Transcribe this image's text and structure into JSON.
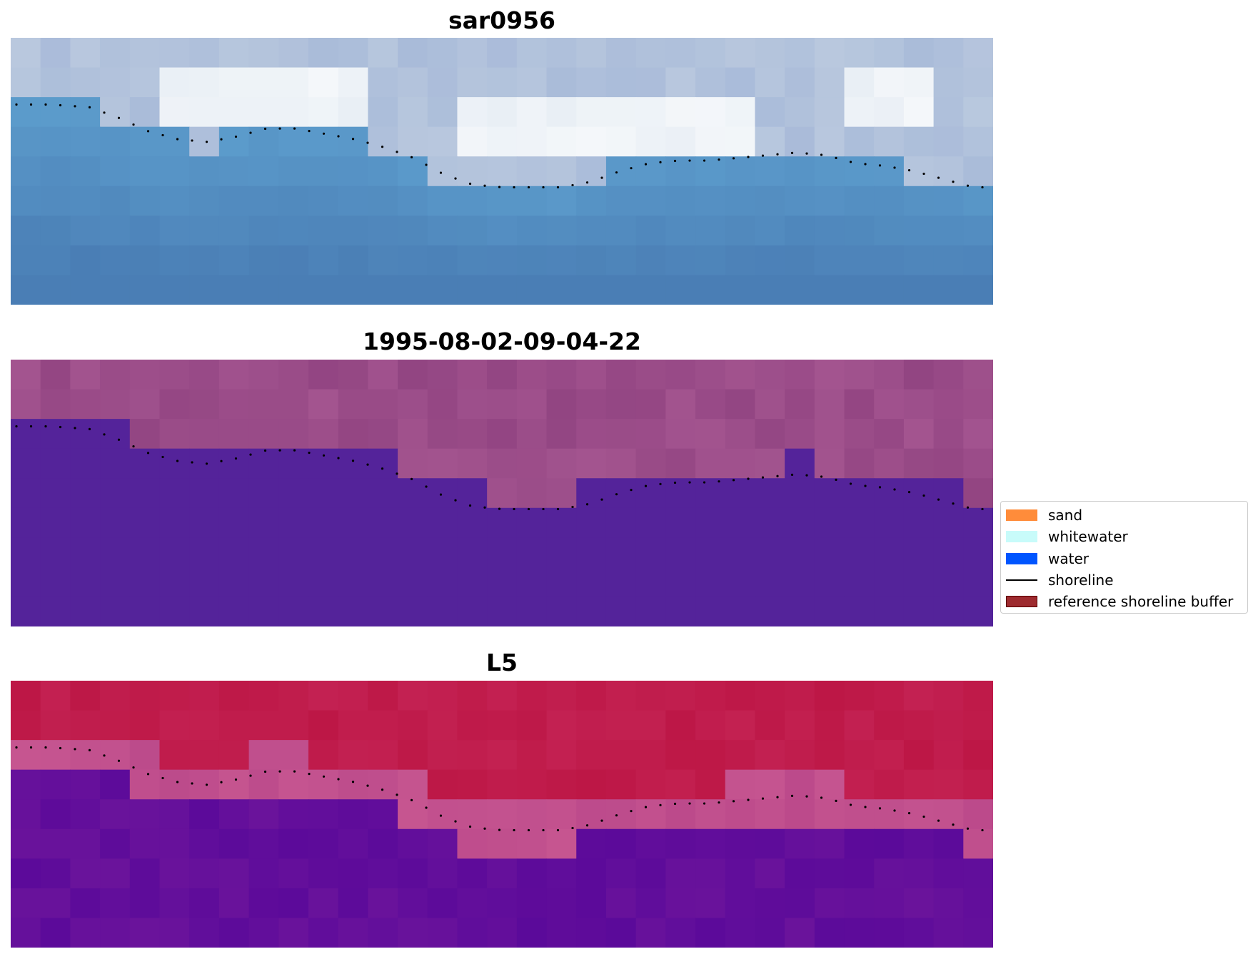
{
  "panels": [
    {
      "id": "rgb",
      "title": "sar0956",
      "colors": {
        "top": "#b9c8de",
        "mid": "#5c9ccc",
        "bottom": "#4a7eb5",
        "white": "#f4f7fa"
      }
    },
    {
      "id": "classified",
      "title": "1995-08-02-09-04-22",
      "colors": {
        "land": "#a3548f",
        "land_dark": "#8e417f",
        "water": "#54239a"
      }
    },
    {
      "id": "index",
      "title": "L5",
      "colors": {
        "land": "#bd1746",
        "band": "#c65590",
        "water": "#6a139b",
        "water_dark": "#55069a"
      }
    }
  ],
  "legend": [
    {
      "label": "sand",
      "type": "swatch",
      "color": "#ff8c3a"
    },
    {
      "label": "whitewater",
      "type": "swatch",
      "color": "#c8fbfa"
    },
    {
      "label": "water",
      "type": "swatch",
      "color": "#0055ff"
    },
    {
      "label": "shoreline",
      "type": "line",
      "color": "#000000"
    },
    {
      "label": "reference shoreline buffer",
      "type": "swatch",
      "color": "#9e2b2f",
      "border": "#5a0000"
    }
  ],
  "shoreline": [
    [
      0.0,
      0.25
    ],
    [
      0.04,
      0.25
    ],
    [
      0.08,
      0.26
    ],
    [
      0.11,
      0.3
    ],
    [
      0.14,
      0.35
    ],
    [
      0.17,
      0.38
    ],
    [
      0.2,
      0.39
    ],
    [
      0.23,
      0.37
    ],
    [
      0.26,
      0.34
    ],
    [
      0.29,
      0.34
    ],
    [
      0.32,
      0.36
    ],
    [
      0.35,
      0.38
    ],
    [
      0.38,
      0.41
    ],
    [
      0.41,
      0.45
    ],
    [
      0.44,
      0.51
    ],
    [
      0.47,
      0.55
    ],
    [
      0.5,
      0.56
    ],
    [
      0.53,
      0.56
    ],
    [
      0.56,
      0.56
    ],
    [
      0.59,
      0.54
    ],
    [
      0.62,
      0.5
    ],
    [
      0.65,
      0.47
    ],
    [
      0.68,
      0.46
    ],
    [
      0.71,
      0.46
    ],
    [
      0.74,
      0.45
    ],
    [
      0.77,
      0.44
    ],
    [
      0.8,
      0.43
    ],
    [
      0.83,
      0.44
    ],
    [
      0.86,
      0.47
    ],
    [
      0.89,
      0.48
    ],
    [
      0.92,
      0.5
    ],
    [
      0.95,
      0.53
    ],
    [
      0.98,
      0.56
    ],
    [
      1.0,
      0.56
    ]
  ]
}
